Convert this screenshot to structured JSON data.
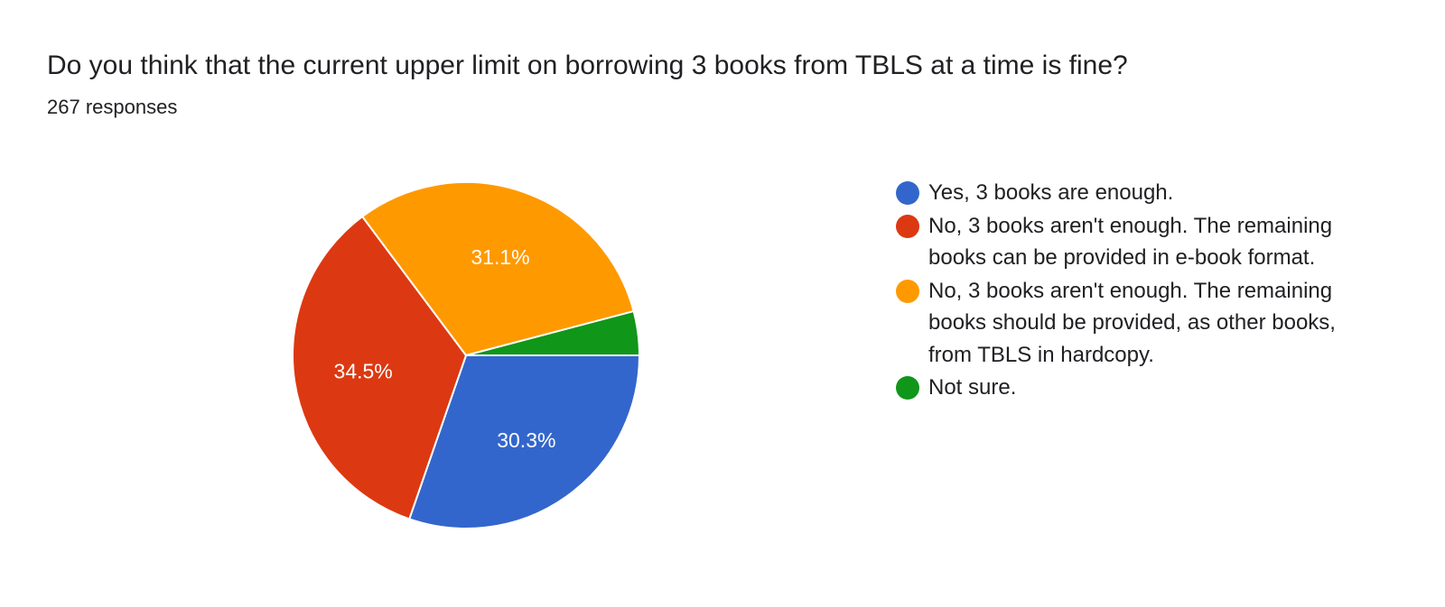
{
  "header": {
    "title": "Do you think that the current upper limit on borrowing 3 books from TBLS at a time is fine?",
    "subtitle": "267 responses"
  },
  "chart_data": {
    "type": "pie",
    "categories": [
      "Yes, 3 books are enough.",
      "No, 3 books aren't enough. The remaining books can be provided in e-book format.",
      "No, 3 books aren't enough. The remaining books should be provided, as other books, from TBLS in hardcopy.",
      "Not sure."
    ],
    "values": [
      30.3,
      34.5,
      31.1,
      4.1
    ],
    "data_labels": [
      "30.3%",
      "34.5%",
      "31.1%",
      ""
    ],
    "colors": [
      "#3366cc",
      "#dc3912",
      "#ff9900",
      "#109618"
    ],
    "legend_position": "right"
  }
}
